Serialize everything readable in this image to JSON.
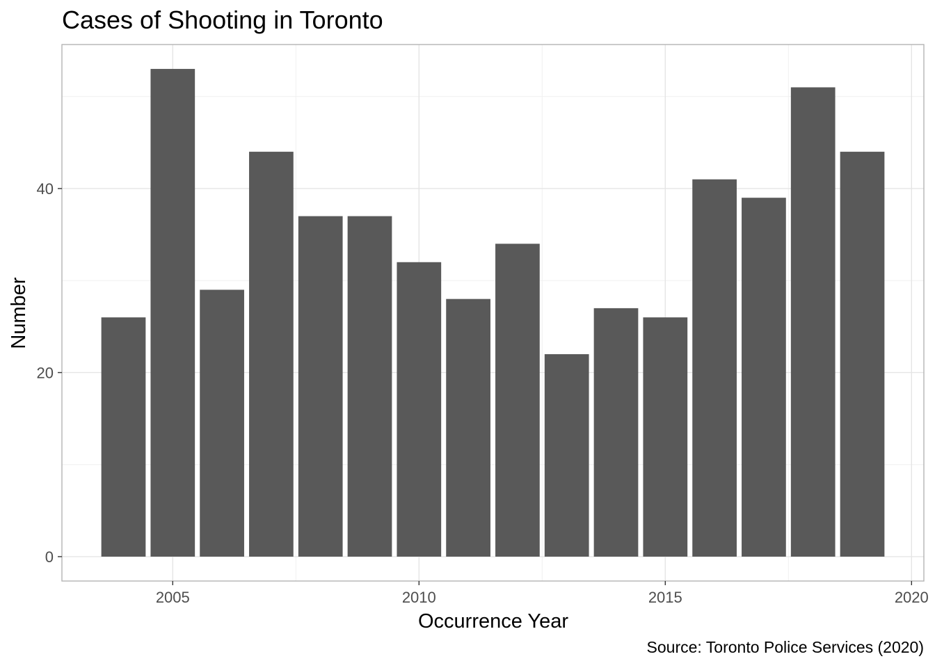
{
  "chart_data": {
    "type": "bar",
    "title": "Cases of Shooting in Toronto",
    "xlabel": "Occurrence Year",
    "ylabel": "Number",
    "caption": "Source: Toronto Police Services (2020)",
    "categories": [
      2004,
      2005,
      2006,
      2007,
      2008,
      2009,
      2010,
      2011,
      2012,
      2013,
      2014,
      2015,
      2016,
      2017,
      2018,
      2019
    ],
    "values": [
      26,
      53,
      29,
      44,
      37,
      37,
      32,
      28,
      34,
      22,
      27,
      26,
      41,
      39,
      51,
      44
    ],
    "xlim": [
      2002.75,
      2020.25
    ],
    "ylim": [
      -2.65,
      55.65
    ],
    "x_ticks": [
      2005,
      2010,
      2015,
      2020
    ],
    "y_ticks": [
      0,
      20,
      40
    ],
    "grid": true,
    "bar_color": "#595959"
  }
}
